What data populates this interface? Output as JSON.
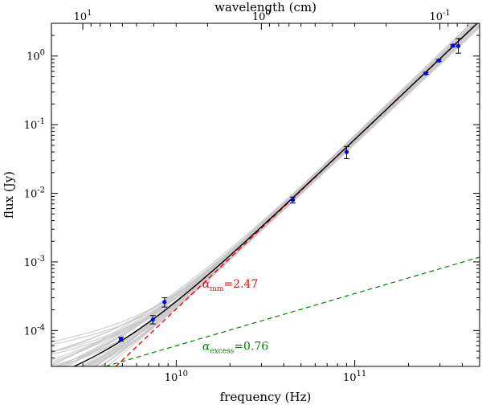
{
  "chart_data": {
    "type": "scatter",
    "title": "",
    "xlabel": "frequency (Hz)",
    "ylabel": "flux (Jy)",
    "x2label": "wavelength (cm)",
    "xscale": "log",
    "yscale": "log",
    "xlim": [
      2000000000.0,
      500000000000.0
    ],
    "ylim": [
      3e-05,
      3.0
    ],
    "grid": false,
    "legend": "none",
    "x_ticks": [
      {
        "value": 10000000000.0,
        "base": "10",
        "exp": "10"
      },
      {
        "value": 100000000000.0,
        "base": "10",
        "exp": "11"
      }
    ],
    "y_ticks": [
      {
        "value": 0.0001,
        "base": "10",
        "exp": "-4"
      },
      {
        "value": 0.001,
        "base": "10",
        "exp": "-3"
      },
      {
        "value": 0.01,
        "base": "10",
        "exp": "-2"
      },
      {
        "value": 0.1,
        "base": "10",
        "exp": "-1"
      },
      {
        "value": 1.0,
        "base": "10",
        "exp": "0"
      }
    ],
    "x2_ticks": [
      {
        "wavelength_cm": 10,
        "base": "10",
        "exp": "1"
      },
      {
        "wavelength_cm": 1,
        "base": "10",
        "exp": "0"
      },
      {
        "wavelength_cm": 0.1,
        "base": "10",
        "exp": "-1"
      }
    ],
    "data_points": [
      {
        "x": 4900000000.0,
        "y": 7.5e-05,
        "ylo": 7e-05,
        "yhi": 8e-05
      },
      {
        "x": 7400000000.0,
        "y": 0.000145,
        "ylo": 0.000125,
        "yhi": 0.000165
      },
      {
        "x": 8600000000.0,
        "y": 0.00026,
        "ylo": 0.00022,
        "yhi": 0.0003
      },
      {
        "x": 45000000000.0,
        "y": 0.008,
        "ylo": 0.0072,
        "yhi": 0.0088
      },
      {
        "x": 90000000000.0,
        "y": 0.04,
        "ylo": 0.032,
        "yhi": 0.048
      },
      {
        "x": 250000000000.0,
        "y": 0.56,
        "ylo": 0.54,
        "yhi": 0.58
      },
      {
        "x": 295000000000.0,
        "y": 0.86,
        "ylo": 0.83,
        "yhi": 0.89
      },
      {
        "x": 355000000000.0,
        "y": 1.42,
        "ylo": 1.37,
        "yhi": 1.47
      },
      {
        "x": 380000000000.0,
        "y": 1.4,
        "ylo": 1.1,
        "yhi": 1.8
      }
    ],
    "series": [
      {
        "kind": "best-fit",
        "color": "#000000",
        "style": "solid"
      },
      {
        "kind": "mm",
        "color": "#ff0000",
        "style": "dashed",
        "alpha": 2.47,
        "subscript": "mm",
        "anchor": {
          "x": 30000000000.0,
          "y": 0.0031
        }
      },
      {
        "kind": "excess",
        "color": "#008000",
        "style": "dashed",
        "alpha": 0.76,
        "subscript": "excess",
        "anchor": {
          "x": 10000000000.0,
          "y": 6e-05
        }
      }
    ],
    "annotations": [
      {
        "symbol": "α",
        "subscript": "mm",
        "text": "=2.47",
        "color": "#ff0000",
        "x": 14000000000.0,
        "y": 0.00042
      },
      {
        "symbol": "α",
        "subscript": "excess",
        "text": "=0.76",
        "color": "#008000",
        "x": 14000000000.0,
        "y": 5.2e-05
      }
    ],
    "colors": {
      "points": "#0000ff",
      "models": "#c8c8c8"
    }
  }
}
